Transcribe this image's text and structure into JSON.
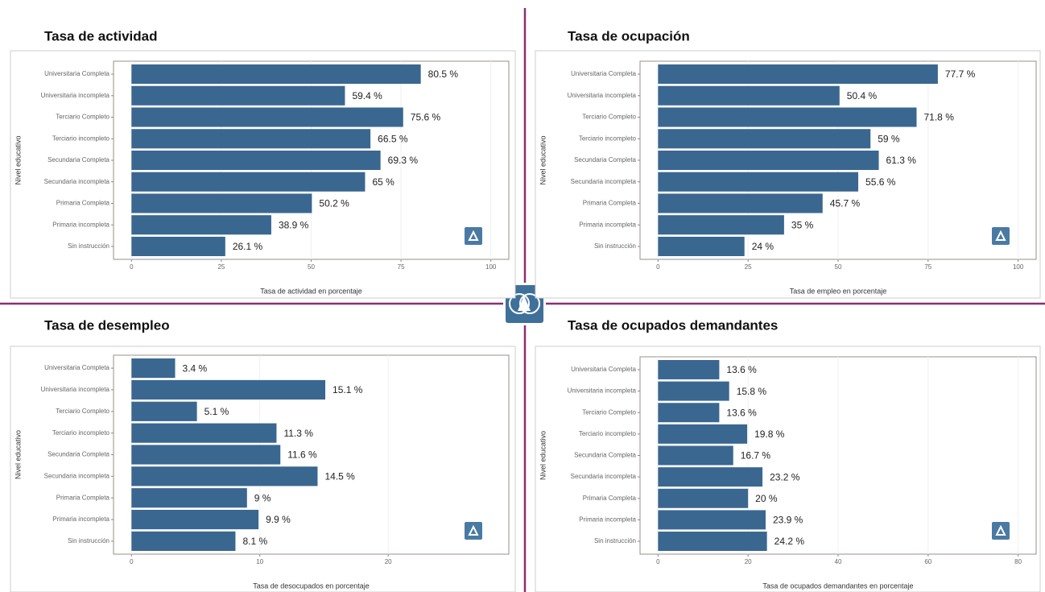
{
  "chart_data": [
    {
      "type": "bar",
      "orientation": "horizontal",
      "title": "Tasa de actividad",
      "x_label": "Tasa de actividad en porcentaje",
      "y_label": "Nivel educativo",
      "categories": [
        "Universitaria Completa",
        "Universitaria incompleta",
        "Terciario Completo",
        "Terciario incompleto",
        "Secundaria Completa",
        "Secundaria incompleta",
        "Primaria Completa",
        "Primaria incompleta",
        "Sin instrucción"
      ],
      "values": [
        80.5,
        59.4,
        75.6,
        66.5,
        69.3,
        65,
        50.2,
        38.9,
        26.1
      ],
      "value_labels": [
        "80.5 %",
        "59.4 %",
        "75.6 %",
        "66.5 %",
        "69.3 %",
        "65 %",
        "50.2 %",
        "38.9 %",
        "26.1 %"
      ],
      "color": "#3a6790",
      "xlim": [
        -5,
        105
      ],
      "xticks": [
        0,
        25,
        50,
        75,
        100
      ],
      "grid": true
    },
    {
      "type": "bar",
      "orientation": "horizontal",
      "title": "Tasa de ocupación",
      "x_label": "Tasa de empleo en porcentaje",
      "y_label": "Nivel educativo",
      "categories": [
        "Universitaria Completa",
        "Universitaria incompleta",
        "Terciario Completo",
        "Terciario incompleto",
        "Secundaria Completa",
        "Secundaria incompleta",
        "Primaria Completa",
        "Primaria incompleta",
        "Sin instrucción"
      ],
      "values": [
        77.7,
        50.4,
        71.8,
        59,
        61.3,
        55.6,
        45.7,
        35,
        24
      ],
      "value_labels": [
        "77.7 %",
        "50.4 %",
        "71.8 %",
        "59 %",
        "61.3 %",
        "55.6 %",
        "45.7 %",
        "35 %",
        "24 %"
      ],
      "color": "#3a6790",
      "xlim": [
        -5,
        105
      ],
      "xticks": [
        0,
        25,
        50,
        75,
        100
      ],
      "grid": true
    },
    {
      "type": "bar",
      "orientation": "horizontal",
      "title": "Tasa de desempleo",
      "x_label": "Tasa de desocupados en porcentaje",
      "y_label": "Nivel educativo",
      "categories": [
        "Universitaria Completa",
        "Universitaria incompleta",
        "Terciario Completo",
        "Terciario incompleto",
        "Secundaria Completa",
        "Secundaria incompleta",
        "Primaria Completa",
        "Primaria incompleta",
        "Sin instrucción"
      ],
      "values": [
        3.4,
        15.1,
        5.1,
        11.3,
        11.6,
        14.5,
        9,
        9.9,
        8.1
      ],
      "value_labels": [
        "3.4 %",
        "15.1 %",
        "5.1 %",
        "11.3 %",
        "11.6 %",
        "14.5 %",
        "9 %",
        "9.9 %",
        "8.1 %"
      ],
      "color": "#3a6790",
      "xlim": [
        -1.4,
        29.4
      ],
      "xticks": [
        0,
        10,
        20
      ],
      "grid": true
    },
    {
      "type": "bar",
      "orientation": "horizontal",
      "title": "Tasa de ocupados demandantes",
      "x_label": "Tasa de ocupados demandantes en porcentaje",
      "y_label": "Nivel educativo",
      "categories": [
        "Universitaria Completa",
        "Universitaria incompleta",
        "Terciario Completo",
        "Terciario incompleto",
        "Secundaria Completa",
        "Secundaria incompleta",
        "Primaria Completa",
        "Primaria incompleta",
        "Sin instrucción"
      ],
      "values": [
        13.6,
        15.8,
        13.6,
        19.8,
        16.7,
        23.2,
        20,
        23.9,
        24.2
      ],
      "value_labels": [
        "13.6 %",
        "15.8 %",
        "13.6 %",
        "19.8 %",
        "16.7 %",
        "23.2 %",
        "20 %",
        "23.9 %",
        "24.2 %"
      ],
      "color": "#3a6790",
      "xlim": [
        -4,
        84
      ],
      "xticks": [
        0,
        20,
        40,
        60,
        80
      ],
      "grid": true
    }
  ]
}
